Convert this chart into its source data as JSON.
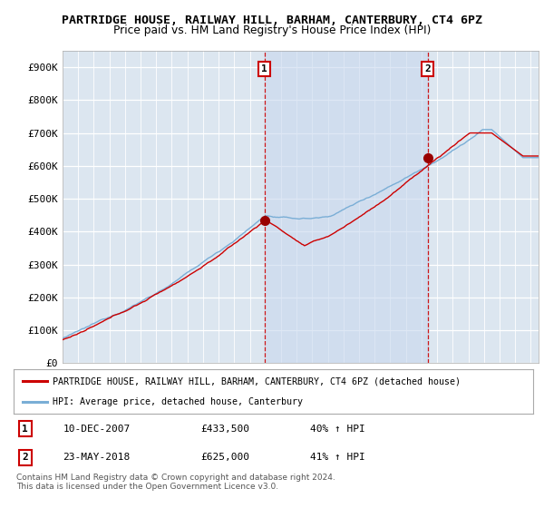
{
  "title": "PARTRIDGE HOUSE, RAILWAY HILL, BARHAM, CANTERBURY, CT4 6PZ",
  "subtitle": "Price paid vs. HM Land Registry's House Price Index (HPI)",
  "ylabel_ticks": [
    "£0",
    "£100K",
    "£200K",
    "£300K",
    "£400K",
    "£500K",
    "£600K",
    "£700K",
    "£800K",
    "£900K"
  ],
  "ytick_values": [
    0,
    100000,
    200000,
    300000,
    400000,
    500000,
    600000,
    700000,
    800000,
    900000
  ],
  "ylim": [
    0,
    950000
  ],
  "xlim_start": 1995.0,
  "xlim_end": 2025.5,
  "sale1_x": 2007.94,
  "sale1_y": 433500,
  "sale1_label": "1",
  "sale2_x": 2018.39,
  "sale2_y": 625000,
  "sale2_label": "2",
  "red_line_color": "#cc0000",
  "blue_line_color": "#7aaed6",
  "shade_color": "#ddeeff",
  "background_color": "#dce6f0",
  "plot_bg_color": "#dce6f0",
  "legend_line1": "PARTRIDGE HOUSE, RAILWAY HILL, BARHAM, CANTERBURY, CT4 6PZ (detached house)",
  "legend_line2": "HPI: Average price, detached house, Canterbury",
  "table_row1_num": "1",
  "table_row1_date": "10-DEC-2007",
  "table_row1_price": "£433,500",
  "table_row1_hpi": "40% ↑ HPI",
  "table_row2_num": "2",
  "table_row2_date": "23-MAY-2018",
  "table_row2_price": "£625,000",
  "table_row2_hpi": "41% ↑ HPI",
  "footnote": "Contains HM Land Registry data © Crown copyright and database right 2024.\nThis data is licensed under the Open Government Licence v3.0.",
  "title_fontsize": 9.5,
  "subtitle_fontsize": 9,
  "tick_fontsize": 8
}
